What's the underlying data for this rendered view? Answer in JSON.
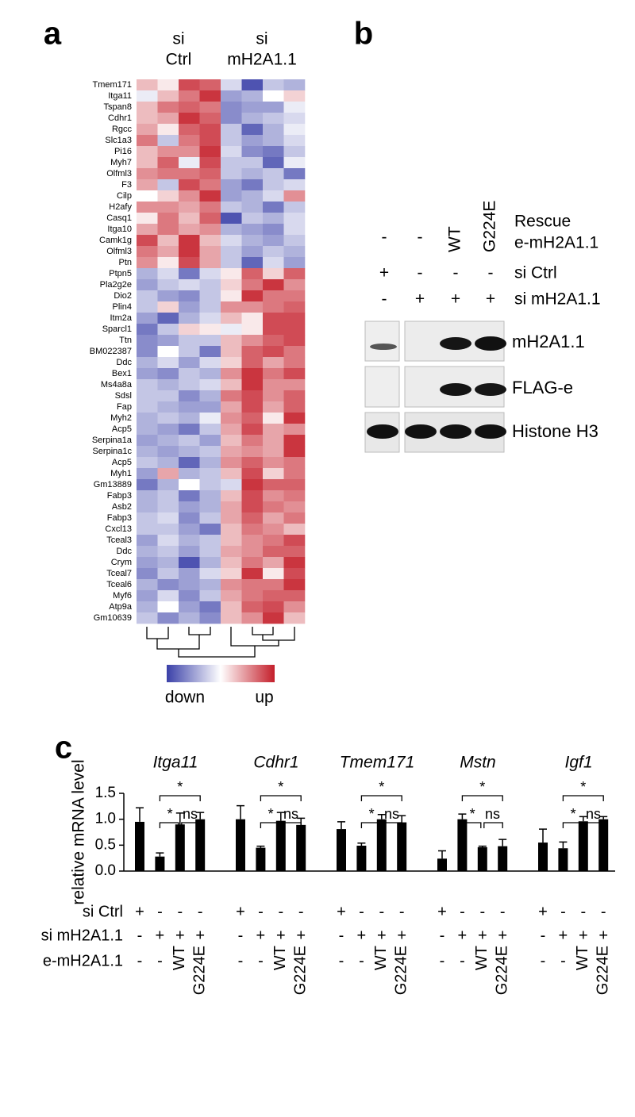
{
  "figure": {
    "panel_labels": [
      "a",
      "b",
      "c"
    ]
  },
  "chart_data": [
    {
      "type": "heatmap",
      "column_groups": [
        {
          "lines": [
            "si",
            "Ctrl"
          ]
        },
        {
          "lines": [
            "si",
            "mH2A1.1"
          ]
        }
      ],
      "rows": [
        "Tmem171",
        "Itga11",
        "Tspan8",
        "Cdhr1",
        "Rgcc",
        "Slc1a3",
        "Pi16",
        "Myh7",
        "Olfml3",
        "F3",
        "Cilp",
        "H2afy",
        "Casq1",
        "Itga10",
        "Camk1g",
        "Olfml3",
        "Ptn",
        "Ptpn5",
        "Pla2g2e",
        "Dio2",
        "Plin4",
        "Itm2a",
        "Sparcl1",
        "Ttn",
        "BM022387",
        "Ddc",
        "Bex1",
        "Ms4a8a",
        "Sdsl",
        "Fap",
        "Myh2",
        "Acp5",
        "Serpina1a",
        "Serpina1c",
        "Acp5",
        "Myh1",
        "Gm13889",
        "Fabp3",
        "Asb2",
        "Fabp3",
        "Cxcl13",
        "Tceal3",
        "Ddc",
        "Crym",
        "Tceal7",
        "Tceal6",
        "Myf6",
        "Atp9a",
        "Gm10639"
      ],
      "values": [
        [
          0.3,
          0.1,
          0.8,
          0.7,
          -0.2,
          -0.9,
          -0.3,
          -0.4
        ],
        [
          -0.1,
          0.3,
          0.6,
          0.9,
          -0.5,
          -0.4,
          0.0,
          0.2
        ],
        [
          0.3,
          0.6,
          0.7,
          0.6,
          -0.6,
          -0.5,
          -0.5,
          -0.1
        ],
        [
          0.3,
          0.4,
          0.9,
          0.7,
          -0.6,
          -0.4,
          -0.3,
          -0.2
        ],
        [
          0.4,
          0.1,
          0.7,
          0.8,
          -0.3,
          -0.8,
          -0.4,
          -0.1
        ],
        [
          0.6,
          -0.3,
          0.6,
          0.8,
          -0.3,
          -0.5,
          -0.4,
          -0.2
        ],
        [
          0.3,
          0.5,
          0.5,
          0.9,
          -0.2,
          -0.6,
          -0.7,
          -0.3
        ],
        [
          0.3,
          0.7,
          -0.1,
          0.8,
          -0.3,
          -0.3,
          -0.8,
          -0.1
        ],
        [
          0.5,
          0.6,
          0.6,
          0.7,
          -0.3,
          -0.4,
          -0.3,
          -0.7
        ],
        [
          0.4,
          -0.3,
          0.8,
          0.6,
          -0.5,
          -0.7,
          -0.3,
          -0.2
        ],
        [
          0.0,
          0.2,
          0.5,
          0.9,
          -0.5,
          -0.4,
          -0.2,
          0.5
        ],
        [
          0.5,
          0.5,
          0.4,
          0.6,
          -0.3,
          -0.4,
          -0.7,
          -0.3
        ],
        [
          0.1,
          0.6,
          0.3,
          0.7,
          -0.9,
          -0.3,
          -0.4,
          -0.2
        ],
        [
          0.4,
          0.6,
          0.4,
          0.5,
          -0.4,
          -0.5,
          -0.6,
          -0.2
        ],
        [
          0.8,
          0.3,
          0.9,
          0.3,
          -0.2,
          -0.4,
          -0.5,
          -0.3
        ],
        [
          0.6,
          0.4,
          0.9,
          0.4,
          -0.3,
          -0.5,
          -0.3,
          -0.4
        ],
        [
          0.5,
          0.1,
          0.8,
          0.4,
          -0.3,
          -0.8,
          -0.2,
          -0.5
        ],
        [
          -0.4,
          -0.2,
          -0.7,
          -0.2,
          0.1,
          0.7,
          0.2,
          0.7
        ],
        [
          -0.5,
          -0.3,
          -0.2,
          -0.3,
          0.2,
          0.6,
          0.9,
          0.5
        ],
        [
          -0.3,
          -0.5,
          -0.6,
          -0.3,
          0.1,
          0.9,
          0.6,
          0.6
        ],
        [
          -0.3,
          0.2,
          -0.5,
          -0.3,
          0.5,
          0.5,
          0.6,
          0.7
        ],
        [
          -0.5,
          -0.8,
          -0.4,
          -0.2,
          0.3,
          0.1,
          0.8,
          0.8
        ],
        [
          -0.7,
          -0.3,
          0.2,
          0.1,
          -0.1,
          0.1,
          0.8,
          0.8
        ],
        [
          -0.6,
          -0.5,
          -0.3,
          -0.3,
          0.3,
          0.5,
          0.7,
          0.8
        ],
        [
          -0.6,
          0.0,
          -0.3,
          -0.7,
          0.3,
          0.7,
          0.8,
          0.6
        ],
        [
          -0.4,
          -0.2,
          -0.5,
          -0.2,
          0.2,
          0.7,
          0.4,
          0.6
        ],
        [
          -0.5,
          -0.6,
          -0.3,
          -0.4,
          0.5,
          0.9,
          0.6,
          0.8
        ],
        [
          -0.3,
          -0.4,
          -0.3,
          -0.2,
          0.3,
          0.9,
          0.5,
          0.5
        ],
        [
          -0.3,
          -0.3,
          -0.6,
          -0.4,
          0.6,
          0.8,
          0.5,
          0.7
        ],
        [
          -0.3,
          -0.4,
          -0.5,
          -0.5,
          0.4,
          0.8,
          0.4,
          0.7
        ],
        [
          -0.4,
          -0.3,
          -0.4,
          -0.1,
          0.5,
          0.7,
          0.1,
          0.9
        ],
        [
          -0.4,
          -0.5,
          -0.7,
          -0.3,
          0.4,
          0.8,
          0.4,
          0.5
        ],
        [
          -0.5,
          -0.4,
          -0.3,
          -0.5,
          0.3,
          0.6,
          0.4,
          0.9
        ],
        [
          -0.4,
          -0.5,
          -0.4,
          -0.3,
          0.4,
          0.5,
          0.4,
          0.9
        ],
        [
          -0.3,
          -0.4,
          -0.8,
          -0.4,
          0.5,
          0.7,
          0.5,
          0.6
        ],
        [
          -0.5,
          0.4,
          -0.4,
          -0.3,
          0.3,
          0.8,
          0.2,
          0.6
        ],
        [
          -0.7,
          -0.4,
          0.0,
          -0.3,
          -0.2,
          0.9,
          0.7,
          0.7
        ],
        [
          -0.4,
          -0.3,
          -0.7,
          -0.4,
          0.3,
          0.8,
          0.5,
          0.6
        ],
        [
          -0.4,
          -0.3,
          -0.5,
          -0.4,
          0.4,
          0.8,
          0.6,
          0.5
        ],
        [
          -0.3,
          -0.2,
          -0.6,
          -0.3,
          0.4,
          0.7,
          0.4,
          0.6
        ],
        [
          -0.3,
          -0.3,
          -0.5,
          -0.7,
          0.3,
          0.6,
          0.5,
          0.3
        ],
        [
          -0.5,
          -0.2,
          -0.4,
          -0.3,
          0.3,
          0.5,
          0.6,
          0.8
        ],
        [
          -0.4,
          -0.3,
          -0.5,
          -0.3,
          0.4,
          0.5,
          0.7,
          0.7
        ],
        [
          -0.5,
          -0.4,
          -0.9,
          -0.4,
          0.3,
          0.6,
          0.4,
          0.9
        ],
        [
          -0.6,
          -0.3,
          -0.5,
          -0.2,
          0.2,
          0.9,
          0.1,
          0.8
        ],
        [
          -0.4,
          -0.6,
          -0.5,
          -0.4,
          0.5,
          0.6,
          0.6,
          0.9
        ],
        [
          -0.5,
          -0.2,
          -0.6,
          -0.3,
          0.4,
          0.6,
          0.7,
          0.7
        ],
        [
          -0.4,
          0.0,
          -0.5,
          -0.7,
          0.3,
          0.7,
          0.8,
          0.5
        ],
        [
          -0.3,
          -0.6,
          -0.4,
          -0.6,
          0.3,
          0.5,
          0.9,
          0.3
        ]
      ],
      "vlim": [
        -1,
        1
      ],
      "colors": {
        "low": "#3a40a8",
        "mid": "#ffffff",
        "high": "#c41e2a"
      },
      "colorbar_labels": [
        "down",
        "up"
      ]
    },
    {
      "type": "bar",
      "ylabel": "relative mRNA level",
      "ylim": [
        0,
        1.5
      ],
      "yticks": [
        {
          "value": 0,
          "label": "0.0"
        },
        0.5,
        {
          "value": 1,
          "label": "1.0"
        },
        1.5
      ],
      "color": "#000000",
      "groups": [
        {
          "name": "Itga11",
          "values": [
            0.95,
            0.28,
            0.9,
            1.0
          ],
          "errors": [
            0.27,
            0.07,
            0.22,
            0.13
          ]
        },
        {
          "name": "Cdhr1",
          "values": [
            1.0,
            0.45,
            0.97,
            0.89
          ],
          "errors": [
            0.26,
            0.03,
            0.16,
            0.13
          ]
        },
        {
          "name": "Tmem171",
          "values": [
            0.81,
            0.49,
            1.0,
            0.94
          ],
          "errors": [
            0.14,
            0.05,
            0.09,
            0.13
          ]
        },
        {
          "name": "Mstn",
          "values": [
            0.24,
            1.0,
            0.46,
            0.48
          ],
          "errors": [
            0.15,
            0.1,
            0.02,
            0.13
          ]
        },
        {
          "name": "Igf1",
          "values": [
            0.55,
            0.44,
            0.96,
            1.0
          ],
          "errors": [
            0.26,
            0.12,
            0.09,
            0.05
          ]
        }
      ],
      "significance": [
        "*",
        "*",
        "ns"
      ],
      "conditions": [
        {
          "name": "si Ctrl",
          "values": [
            "+",
            "-",
            "-",
            "-"
          ]
        },
        {
          "name": "si mH2A1.1",
          "values": [
            "-",
            "+",
            "+",
            "+"
          ]
        },
        {
          "name": "e-mH2A1.1",
          "values": [
            "-",
            "-",
            "WT",
            "G224E"
          ]
        }
      ]
    }
  ],
  "blot": {
    "conditions": [
      {
        "name": [
          "Rescue",
          "e-mH2A1.1"
        ],
        "values": [
          "-",
          "-",
          "WT",
          "G224E"
        ]
      },
      {
        "name": "si Ctrl",
        "values": [
          "+",
          "-",
          "-",
          "-"
        ]
      },
      {
        "name": "si mH2A1.1",
        "values": [
          "-",
          "+",
          "+",
          "+"
        ]
      }
    ],
    "blots": [
      "mH2A1.1",
      "FLAG-e",
      "Histone H3"
    ]
  }
}
